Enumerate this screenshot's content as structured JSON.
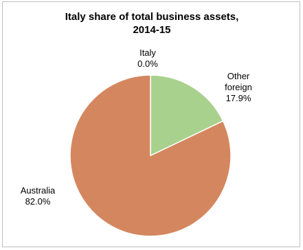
{
  "chart_data": {
    "type": "pie",
    "title_lines": [
      "Italy share of total business assets,",
      "2014-15"
    ],
    "slices": [
      {
        "name": "Italy",
        "label_lines": [
          "Italy"
        ],
        "value": 0.0,
        "value_label": "0.0%",
        "color": "#dc8c60"
      },
      {
        "name": "Other foreign",
        "label_lines": [
          "Other",
          "foreign"
        ],
        "value": 17.9,
        "value_label": "17.9%",
        "color": "#a9d18e"
      },
      {
        "name": "Australia",
        "label_lines": [
          "Australia"
        ],
        "value": 82.0,
        "value_label": "82.0%",
        "color": "#d4875f"
      }
    ],
    "start_angle_deg": 0,
    "direction": "clockwise",
    "slice_border_color": "#ffffff",
    "outer_border_color": "#ffffff"
  }
}
